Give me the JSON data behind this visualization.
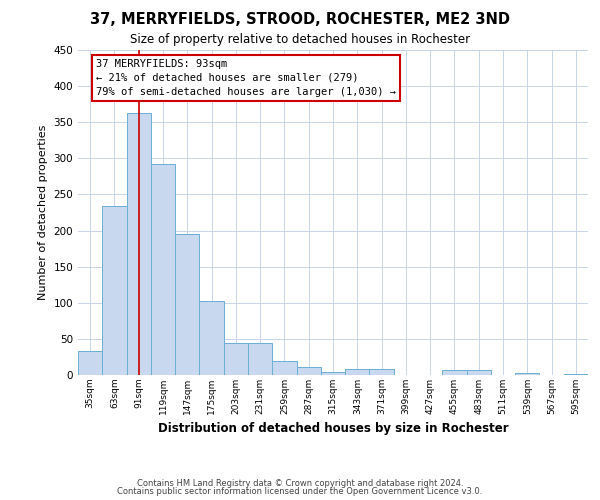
{
  "title": "37, MERRYFIELDS, STROOD, ROCHESTER, ME2 3ND",
  "subtitle": "Size of property relative to detached houses in Rochester",
  "xlabel": "Distribution of detached houses by size in Rochester",
  "ylabel": "Number of detached properties",
  "bin_labels": [
    "35sqm",
    "63sqm",
    "91sqm",
    "119sqm",
    "147sqm",
    "175sqm",
    "203sqm",
    "231sqm",
    "259sqm",
    "287sqm",
    "315sqm",
    "343sqm",
    "371sqm",
    "399sqm",
    "427sqm",
    "455sqm",
    "483sqm",
    "511sqm",
    "539sqm",
    "567sqm",
    "595sqm"
  ],
  "bar_heights": [
    33,
    234,
    363,
    292,
    195,
    102,
    44,
    44,
    20,
    11,
    4,
    8,
    8,
    0,
    0,
    7,
    7,
    0,
    3,
    0,
    2
  ],
  "bar_color": "#c8d8ee",
  "bar_edge_color": "#6baed6",
  "property_line_x": 2,
  "annotation_title": "37 MERRYFIELDS: 93sqm",
  "annotation_line1": "← 21% of detached houses are smaller (279)",
  "annotation_line2": "79% of semi-detached houses are larger (1,030) →",
  "annotation_box_color": "#ffffff",
  "annotation_box_edge_color": "#cc0000",
  "vline_color": "#cc0000",
  "ylim": [
    0,
    450
  ],
  "yticks": [
    0,
    50,
    100,
    150,
    200,
    250,
    300,
    350,
    400,
    450
  ],
  "footer_line1": "Contains HM Land Registry data © Crown copyright and database right 2024.",
  "footer_line2": "Contains public sector information licensed under the Open Government Licence v3.0.",
  "background_color": "#ffffff",
  "grid_color": "#c8d4e8"
}
